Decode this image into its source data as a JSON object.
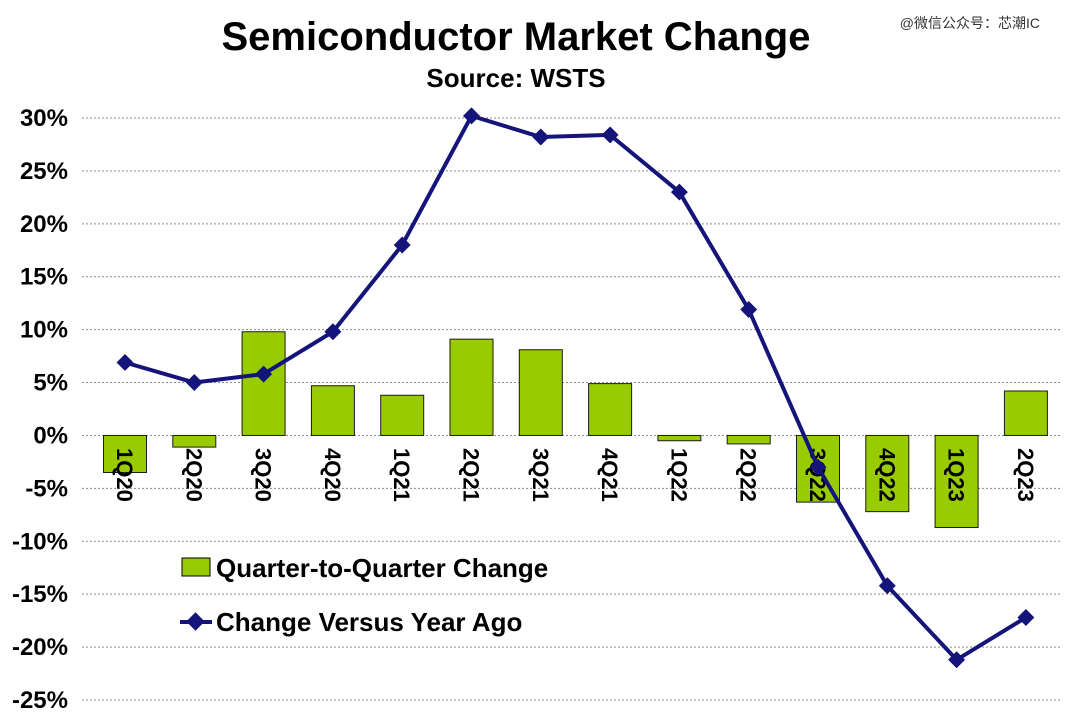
{
  "watermark": "@微信公众号：芯潮IC",
  "chart_data": {
    "type": "bar",
    "title": "Semiconductor Market Change",
    "subtitle": "Source: WSTS",
    "categories": [
      "1Q20",
      "2Q20",
      "3Q20",
      "4Q20",
      "1Q21",
      "2Q21",
      "3Q21",
      "4Q21",
      "1Q22",
      "2Q22",
      "3Q22",
      "4Q22",
      "1Q23",
      "2Q23"
    ],
    "ylim": [
      -25,
      30
    ],
    "yticks": [
      30,
      25,
      20,
      15,
      10,
      5,
      0,
      -5,
      -10,
      -15,
      -20,
      -25
    ],
    "ytick_labels": [
      "30%",
      "25%",
      "20%",
      "15%",
      "10%",
      "5%",
      "0%",
      "-5%",
      "-10%",
      "-15%",
      "-20%",
      "-25%"
    ],
    "grid": true,
    "legend_position": "lower-left",
    "series": [
      {
        "name": "Quarter-to-Quarter Change",
        "type": "bar",
        "color": "#99cc00",
        "values": [
          -3.5,
          -1.1,
          9.8,
          4.7,
          3.8,
          9.1,
          8.1,
          4.9,
          -0.5,
          -0.8,
          -6.3,
          -7.2,
          -8.7,
          4.2
        ]
      },
      {
        "name": "Change Versus Year Ago",
        "type": "line",
        "color": "#14147a",
        "values": [
          6.9,
          5.0,
          5.8,
          9.8,
          18.0,
          30.2,
          28.2,
          28.4,
          23.0,
          11.9,
          -3.0,
          -14.2,
          -21.2,
          -17.2
        ]
      }
    ]
  }
}
